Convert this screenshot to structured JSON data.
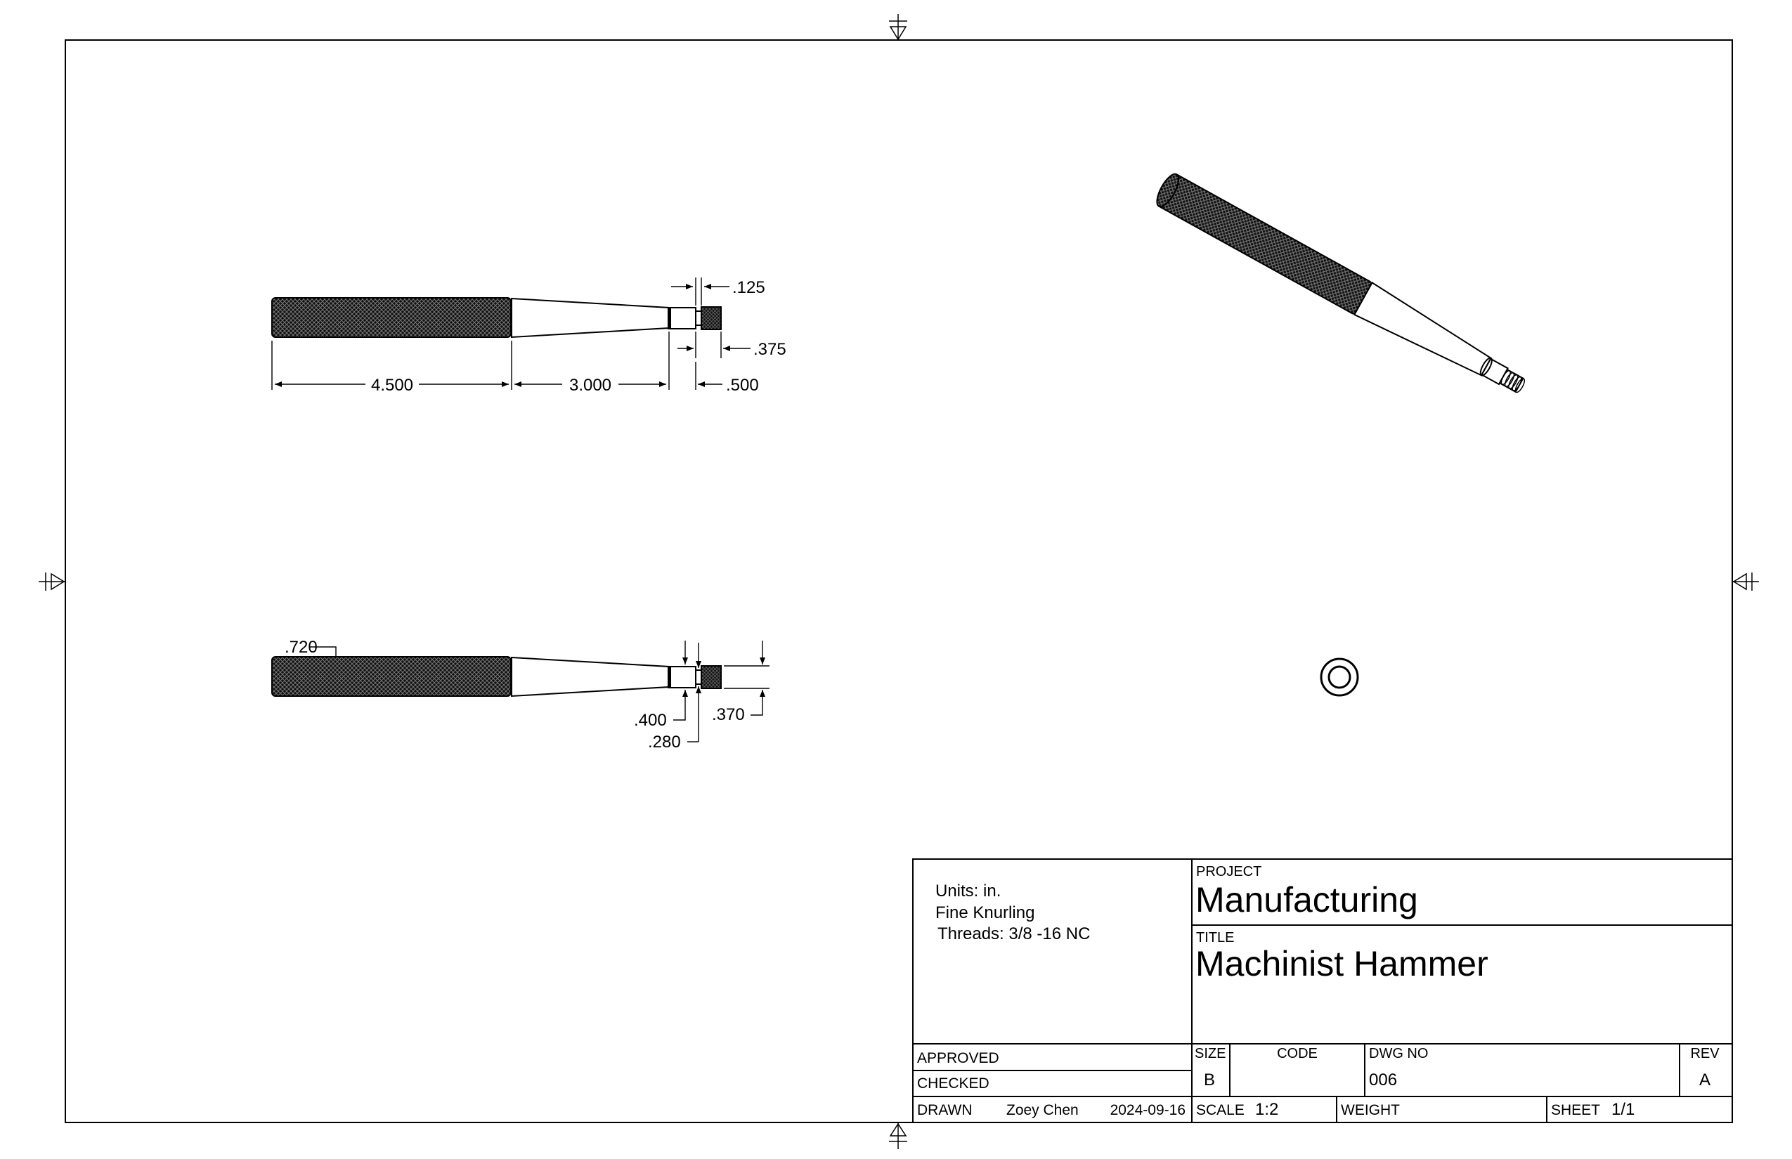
{
  "notes": {
    "line1": "Units: in.",
    "line2": "Fine Knurling",
    "line3": "Threads: 3/8 -16 NC"
  },
  "title_block": {
    "project_label": "PROJECT",
    "project_value": "Manufacturing",
    "title_label": "TITLE",
    "title_value": "Machinist Hammer",
    "approved_label": "APPROVED",
    "checked_label": "CHECKED",
    "drawn_label": "DRAWN",
    "drawn_by": "Zoey Chen",
    "drawn_date": "2024-09-16",
    "size_label": "SIZE",
    "size_value": "B",
    "code_label": "CODE",
    "dwg_no_label": "DWG NO",
    "dwg_no_value": "006",
    "rev_label": "REV",
    "rev_value": "A",
    "scale_label": "SCALE",
    "scale_value": "1:2",
    "weight_label": "WEIGHT",
    "sheet_label": "SHEET",
    "sheet_value": "1/1"
  },
  "dimensions": {
    "front": {
      "knurl_length": "4.500",
      "taper_length": "3.000",
      "thread_length": ".500",
      "relief_length": ".125",
      "gap_length": ".375"
    },
    "top": {
      "knurl_diameter": ".720",
      "neck_diameter": ".400",
      "relief_diameter": ".280",
      "thread_diameter": ".370"
    }
  }
}
